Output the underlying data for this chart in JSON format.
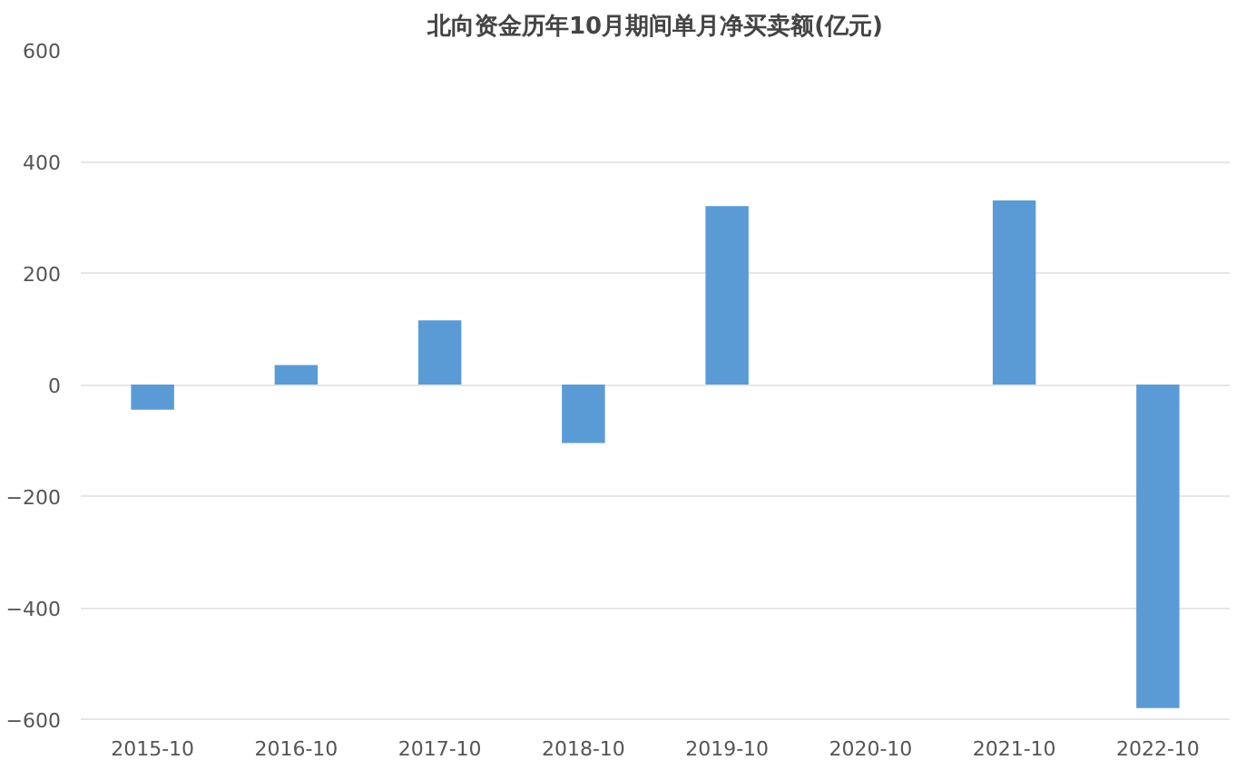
{
  "chart_data": {
    "type": "bar",
    "title": "北向资金历年10月期间单月净买卖额(亿元)",
    "categories": [
      "2015-10",
      "2016-10",
      "2017-10",
      "2018-10",
      "2019-10",
      "2020-10",
      "2021-10",
      "2022-10"
    ],
    "values": [
      -45,
      35,
      115,
      -105,
      320,
      null,
      330,
      -580
    ],
    "color": "#5b9bd5",
    "ylim": [
      -600,
      600
    ],
    "yticks": [
      -600,
      -400,
      -200,
      0,
      200,
      400,
      600
    ],
    "grid": "y"
  }
}
